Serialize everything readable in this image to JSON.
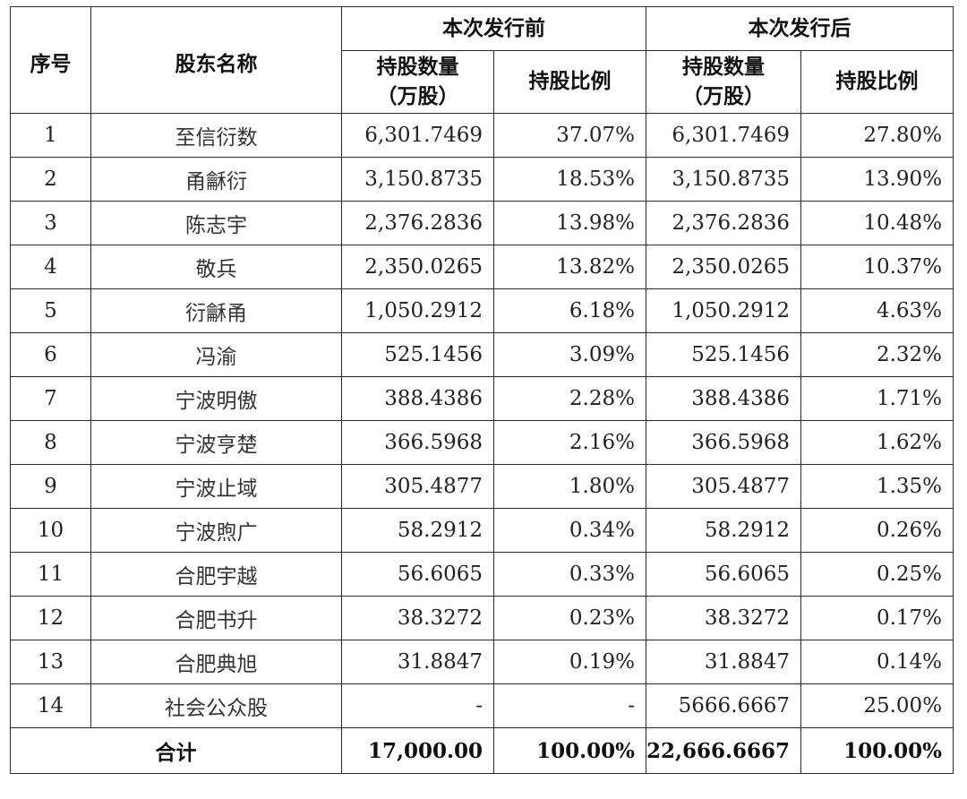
{
  "header": {
    "seq": "序号",
    "name": "股东名称",
    "before": "本次发行前",
    "after": "本次发行后",
    "shares_line1": "持股数量",
    "shares_line2": "（万股）",
    "ratio": "持股比例"
  },
  "rows": [
    {
      "seq": "1",
      "name": "至信衍数",
      "before_shares": "6,301.7469",
      "before_ratio": "37.07%",
      "after_shares": "6,301.7469",
      "after_ratio": "27.80%"
    },
    {
      "seq": "2",
      "name": "甬龢衍",
      "before_shares": "3,150.8735",
      "before_ratio": "18.53%",
      "after_shares": "3,150.8735",
      "after_ratio": "13.90%"
    },
    {
      "seq": "3",
      "name": "陈志宇",
      "before_shares": "2,376.2836",
      "before_ratio": "13.98%",
      "after_shares": "2,376.2836",
      "after_ratio": "10.48%"
    },
    {
      "seq": "4",
      "name": "敬兵",
      "before_shares": "2,350.0265",
      "before_ratio": "13.82%",
      "after_shares": "2,350.0265",
      "after_ratio": "10.37%"
    },
    {
      "seq": "5",
      "name": "衍龢甬",
      "before_shares": "1,050.2912",
      "before_ratio": "6.18%",
      "after_shares": "1,050.2912",
      "after_ratio": "4.63%"
    },
    {
      "seq": "6",
      "name": "冯渝",
      "before_shares": "525.1456",
      "before_ratio": "3.09%",
      "after_shares": "525.1456",
      "after_ratio": "2.32%"
    },
    {
      "seq": "7",
      "name": "宁波明傲",
      "before_shares": "388.4386",
      "before_ratio": "2.28%",
      "after_shares": "388.4386",
      "after_ratio": "1.71%"
    },
    {
      "seq": "8",
      "name": "宁波亨楚",
      "before_shares": "366.5968",
      "before_ratio": "2.16%",
      "after_shares": "366.5968",
      "after_ratio": "1.62%"
    },
    {
      "seq": "9",
      "name": "宁波止域",
      "before_shares": "305.4877",
      "before_ratio": "1.80%",
      "after_shares": "305.4877",
      "after_ratio": "1.35%"
    },
    {
      "seq": "10",
      "name": "宁波煦广",
      "before_shares": "58.2912",
      "before_ratio": "0.34%",
      "after_shares": "58.2912",
      "after_ratio": "0.26%"
    },
    {
      "seq": "11",
      "name": "合肥宇越",
      "before_shares": "56.6065",
      "before_ratio": "0.33%",
      "after_shares": "56.6065",
      "after_ratio": "0.25%"
    },
    {
      "seq": "12",
      "name": "合肥书升",
      "before_shares": "38.3272",
      "before_ratio": "0.23%",
      "after_shares": "38.3272",
      "after_ratio": "0.17%"
    },
    {
      "seq": "13",
      "name": "合肥典旭",
      "before_shares": "31.8847",
      "before_ratio": "0.19%",
      "after_shares": "31.8847",
      "after_ratio": "0.14%"
    },
    {
      "seq": "14",
      "name": "社会公众股",
      "before_shares": "-",
      "before_ratio": "-",
      "after_shares": "5666.6667",
      "after_ratio": "25.00%"
    }
  ],
  "total": {
    "label": "合计",
    "before_shares": "17,000.00",
    "before_ratio": "100.00%",
    "after_shares": "22,666.6667",
    "after_ratio": "100.00%"
  }
}
